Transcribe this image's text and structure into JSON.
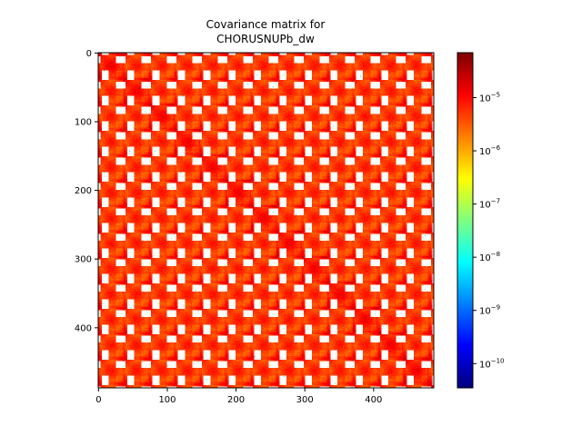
{
  "chart_data": {
    "type": "heatmap",
    "title": [
      "Covariance matrix for",
      "CHORUSNUPb_dw"
    ],
    "xlabel": "",
    "ylabel": "",
    "matrix_size": 488,
    "block_size": 37,
    "xlim": [
      0,
      488
    ],
    "ylim": [
      488,
      0
    ],
    "x_ticks": [
      0,
      100,
      200,
      300,
      400
    ],
    "y_ticks": [
      0,
      100,
      200,
      300,
      400
    ],
    "x_tick_labels": [
      "0",
      "100",
      "200",
      "300",
      "400"
    ],
    "y_tick_labels": [
      "0",
      "100",
      "200",
      "300",
      "400"
    ],
    "colorscale": "jet",
    "color_scale_type": "log",
    "color_range": [
      3.5e-11,
      7e-05
    ],
    "colorbar": {
      "ticks": [
        1e-10,
        1e-09,
        1e-08,
        1e-07,
        1e-06,
        1e-05
      ],
      "labels": [
        {
          "base": "10",
          "exp": "−10"
        },
        {
          "base": "10",
          "exp": "−9"
        },
        {
          "base": "10",
          "exp": "−8"
        },
        {
          "base": "10",
          "exp": "−7"
        },
        {
          "base": "10",
          "exp": "−6"
        },
        {
          "base": "10",
          "exp": "−5"
        }
      ]
    },
    "grid": false,
    "legend": "none"
  }
}
